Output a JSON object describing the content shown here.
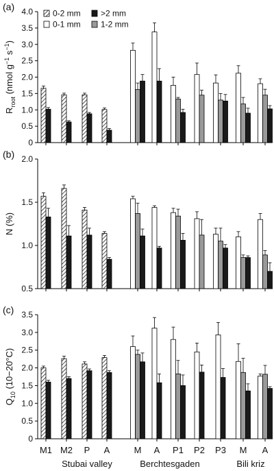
{
  "figure": {
    "group_labels": [
      "Stubai valley",
      "Berchtesgaden",
      "Bili kriz"
    ],
    "site_labels": [
      "M1",
      "M2",
      "P",
      "A",
      "M",
      "A",
      "P1",
      "P2",
      "P3",
      "M",
      "A"
    ]
  },
  "legend": {
    "entries": [
      {
        "key": "0-2",
        "label": "0-2 mm",
        "pattern": "hatch"
      },
      {
        "key": "gt2",
        "label": ">2 mm",
        "color": "#1a1a1a"
      },
      {
        "key": "0-1",
        "label": "0-1 mm",
        "color": "#ffffff"
      },
      {
        "key": "1-2",
        "label": "1-2 mm",
        "color": "#9a9a9a"
      }
    ]
  },
  "chart_data": [
    {
      "type": "bar",
      "panel": "(a)",
      "ylabel_main": "R",
      "ylabel_sub": "root",
      "ylabel_rest": " (nmol g",
      "ylabel_sup": "−1",
      "ylabel_tail": " s",
      "ylabel_sup2": "−1",
      "ylabel_end": ")",
      "ylim": [
        0,
        4.0
      ],
      "yticks": [
        "0",
        "0.5",
        "1.0",
        "1.5",
        "2.0",
        "2.5",
        "3.0",
        "3.5",
        "4.0"
      ],
      "categories": [
        "M1",
        "M2",
        "P",
        "A",
        "M",
        "A",
        "P1",
        "P2",
        "P3",
        "M",
        "A"
      ],
      "series": [
        {
          "name": "0-2 mm",
          "values": [
            1.66,
            1.46,
            1.46,
            1.01,
            null,
            null,
            null,
            null,
            null,
            null,
            null
          ],
          "err": [
            0.07,
            0.05,
            0.05,
            0.05,
            null,
            null,
            null,
            null,
            null,
            null,
            null
          ]
        },
        {
          "name": "0-1 mm",
          "values": [
            null,
            null,
            null,
            null,
            2.82,
            3.38,
            1.75,
            2.08,
            1.82,
            2.12,
            1.8
          ],
          "err": [
            null,
            null,
            null,
            null,
            0.22,
            0.28,
            0.25,
            0.35,
            0.25,
            0.23,
            0.15
          ]
        },
        {
          "name": "1-2 mm",
          "values": [
            null,
            null,
            null,
            null,
            1.62,
            null,
            1.33,
            1.45,
            1.3,
            1.18,
            1.45
          ],
          "err": [
            null,
            null,
            null,
            null,
            0.2,
            null,
            0.05,
            0.15,
            0.2,
            0.2,
            0.18
          ]
        },
        {
          "name": ">2 mm",
          "values": [
            1.02,
            0.63,
            0.88,
            0.38,
            1.88,
            1.88,
            0.92,
            null,
            1.27,
            0.9,
            1.03
          ],
          "err": [
            0.05,
            0.04,
            0.04,
            0.05,
            0.2,
            0.38,
            0.1,
            null,
            0.2,
            0.15,
            0.1
          ]
        }
      ]
    },
    {
      "type": "bar",
      "panel": "(b)",
      "ylabel_main": "N (%)",
      "ylim": [
        0.5,
        2.0
      ],
      "yticks": [
        "0.5",
        "1.0",
        "1.5",
        "2.0"
      ],
      "categories": [
        "M1",
        "M2",
        "P",
        "A",
        "M",
        "A",
        "P1",
        "P2",
        "P3",
        "M",
        "A"
      ],
      "series": [
        {
          "name": "0-2 mm",
          "values": [
            1.57,
            1.66,
            1.41,
            1.14,
            null,
            null,
            null,
            null,
            null,
            null,
            null
          ],
          "err": [
            0.04,
            0.04,
            0.03,
            0.02,
            null,
            null,
            null,
            null,
            null,
            null,
            null
          ]
        },
        {
          "name": "0-1 mm",
          "values": [
            null,
            null,
            null,
            null,
            1.54,
            1.44,
            1.38,
            1.31,
            1.13,
            1.1,
            1.3
          ],
          "err": [
            null,
            null,
            null,
            null,
            0.03,
            0.02,
            0.05,
            0.08,
            0.07,
            0.06,
            0.07
          ]
        },
        {
          "name": "1-2 mm",
          "values": [
            null,
            null,
            null,
            null,
            1.37,
            null,
            1.34,
            1.12,
            1.05,
            0.86,
            0.89
          ],
          "err": [
            null,
            null,
            null,
            null,
            0.12,
            null,
            0.08,
            0.18,
            0.15,
            0.03,
            0.05
          ]
        },
        {
          "name": ">2 mm",
          "values": [
            1.33,
            1.11,
            1.12,
            0.84,
            1.11,
            0.97,
            1.06,
            null,
            0.97,
            0.86,
            0.7
          ],
          "err": [
            0.1,
            0.12,
            0.08,
            0.02,
            0.08,
            0.02,
            0.08,
            null,
            0.04,
            0.02,
            0.1
          ]
        }
      ]
    },
    {
      "type": "bar",
      "panel": "(c)",
      "ylabel_main": "Q",
      "ylabel_sub": "10",
      "ylabel_rest": " (10−20°C)",
      "ylim": [
        0,
        3.5
      ],
      "yticks": [
        "0",
        "0.5",
        "1.0",
        "1.5",
        "2.0",
        "2.5",
        "3.0",
        "3.5"
      ],
      "categories": [
        "M1",
        "M2",
        "P",
        "A",
        "M",
        "A",
        "P1",
        "P2",
        "P3",
        "M",
        "A"
      ],
      "series": [
        {
          "name": "0-2 mm",
          "values": [
            2.0,
            2.26,
            2.11,
            2.29,
            null,
            null,
            null,
            null,
            null,
            null,
            null
          ],
          "err": [
            0.05,
            0.07,
            0.06,
            0.06,
            null,
            null,
            null,
            null,
            null,
            null,
            null
          ]
        },
        {
          "name": "0-1 mm",
          "values": [
            null,
            null,
            null,
            null,
            2.6,
            3.12,
            2.8,
            2.45,
            2.93,
            2.18,
            1.77
          ],
          "err": [
            null,
            null,
            null,
            null,
            0.3,
            0.3,
            0.35,
            0.25,
            0.35,
            0.5,
            0.06
          ]
        },
        {
          "name": "1-2 mm",
          "values": [
            null,
            null,
            null,
            null,
            2.38,
            null,
            1.83,
            null,
            null,
            1.87,
            1.82
          ],
          "err": [
            null,
            null,
            null,
            null,
            0.12,
            null,
            0.38,
            null,
            null,
            0.4,
            0.25
          ]
        },
        {
          "name": ">2 mm",
          "values": [
            1.6,
            1.7,
            1.92,
            1.87,
            2.17,
            1.58,
            1.5,
            1.88,
            1.73,
            1.35,
            1.42
          ],
          "err": [
            0.05,
            0.05,
            0.05,
            0.05,
            0.25,
            0.25,
            0.3,
            0.2,
            0.25,
            0.2,
            0.05
          ]
        }
      ]
    }
  ]
}
